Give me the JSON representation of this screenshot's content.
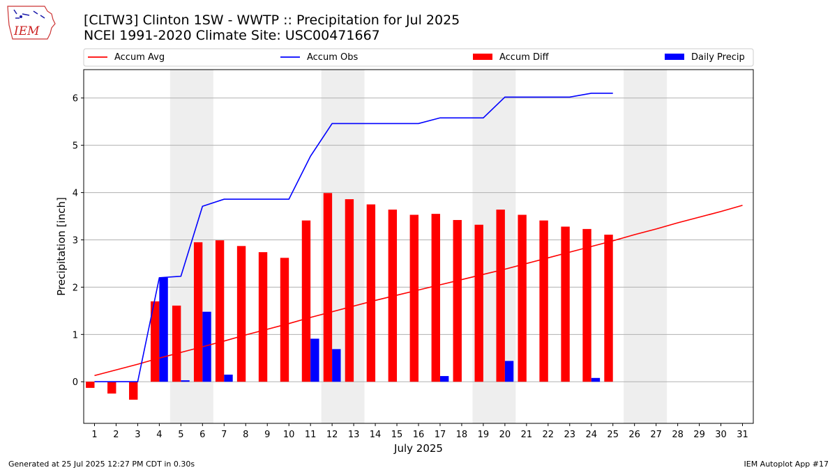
{
  "header": {
    "title_line1": "[CLTW3] Clinton 1SW - WWTP :: Precipitation for Jul 2025",
    "title_line2": "NCEI 1991-2020 Climate Site: USC00471667",
    "logo_text": "IEM"
  },
  "footer": {
    "generated": "Generated at 25 Jul 2025 12:27 PM CDT in 0.30s",
    "app": "IEM Autoplot App #17"
  },
  "colors": {
    "accum_avg": "#ff0000",
    "accum_obs": "#0000ff",
    "accum_diff": "#ff0000",
    "daily_precip": "#0000ff",
    "weekend_shade": "#eeeeee",
    "grid": "#b0b0b0"
  },
  "chart_data": {
    "type": "bar",
    "xlabel": "July 2025",
    "ylabel": "Precipitation [inch]",
    "xlim": [
      0.5,
      31.5
    ],
    "ylim": [
      -0.88,
      6.6
    ],
    "yticks": [
      0,
      1,
      2,
      3,
      4,
      5,
      6
    ],
    "x": [
      1,
      2,
      3,
      4,
      5,
      6,
      7,
      8,
      9,
      10,
      11,
      12,
      13,
      14,
      15,
      16,
      17,
      18,
      19,
      20,
      21,
      22,
      23,
      24,
      25,
      26,
      27,
      28,
      29,
      30,
      31
    ],
    "grid": "y",
    "legend_position": "top",
    "weekend_spans": [
      [
        4.5,
        6.5
      ],
      [
        11.5,
        13.5
      ],
      [
        18.5,
        20.5
      ],
      [
        25.5,
        27.5
      ]
    ],
    "series": [
      {
        "name": "Accum Avg",
        "kind": "line",
        "x": [
          1,
          2,
          3,
          4,
          5,
          6,
          7,
          8,
          9,
          10,
          11,
          12,
          13,
          14,
          15,
          16,
          17,
          18,
          19,
          20,
          21,
          22,
          23,
          24,
          25,
          26,
          27,
          28,
          29,
          30,
          31
        ],
        "values": [
          0.13,
          0.25,
          0.37,
          0.5,
          0.62,
          0.74,
          0.86,
          0.99,
          1.11,
          1.23,
          1.36,
          1.48,
          1.6,
          1.72,
          1.83,
          1.94,
          2.05,
          2.16,
          2.27,
          2.38,
          2.5,
          2.62,
          2.74,
          2.86,
          2.98,
          3.11,
          3.23,
          3.36,
          3.48,
          3.6,
          3.73
        ]
      },
      {
        "name": "Accum Obs",
        "kind": "line",
        "x": [
          1,
          2,
          3,
          4,
          5,
          6,
          7,
          8,
          9,
          10,
          11,
          12,
          13,
          14,
          15,
          16,
          17,
          18,
          19,
          20,
          21,
          22,
          23,
          24,
          25
        ],
        "values": [
          0,
          0,
          0,
          2.2,
          2.23,
          3.71,
          3.86,
          3.86,
          3.86,
          3.86,
          4.77,
          5.46,
          5.46,
          5.46,
          5.46,
          5.46,
          5.58,
          5.58,
          5.58,
          6.02,
          6.02,
          6.02,
          6.02,
          6.1,
          6.1
        ]
      },
      {
        "name": "Accum Diff",
        "kind": "bar",
        "x": [
          1,
          2,
          3,
          4,
          5,
          6,
          7,
          8,
          9,
          10,
          11,
          12,
          13,
          14,
          15,
          16,
          17,
          18,
          19,
          20,
          21,
          22,
          23,
          24,
          25
        ],
        "values": [
          -0.13,
          -0.25,
          -0.38,
          1.7,
          1.61,
          2.95,
          2.99,
          2.87,
          2.74,
          2.62,
          3.41,
          3.99,
          3.86,
          3.75,
          3.64,
          3.53,
          3.55,
          3.42,
          3.32,
          3.64,
          3.53,
          3.41,
          3.28,
          3.23,
          3.11
        ]
      },
      {
        "name": "Daily Precip",
        "kind": "bar",
        "x": [
          1,
          2,
          3,
          4,
          5,
          6,
          7,
          8,
          9,
          10,
          11,
          12,
          13,
          14,
          15,
          16,
          17,
          18,
          19,
          20,
          21,
          22,
          23,
          24,
          25
        ],
        "values": [
          0,
          0,
          0,
          2.2,
          0.03,
          1.48,
          0.15,
          0,
          0,
          0,
          0.91,
          0.69,
          0,
          0,
          0,
          0,
          0.12,
          0,
          0,
          0.44,
          0,
          0,
          0,
          0.08,
          0
        ]
      }
    ]
  }
}
